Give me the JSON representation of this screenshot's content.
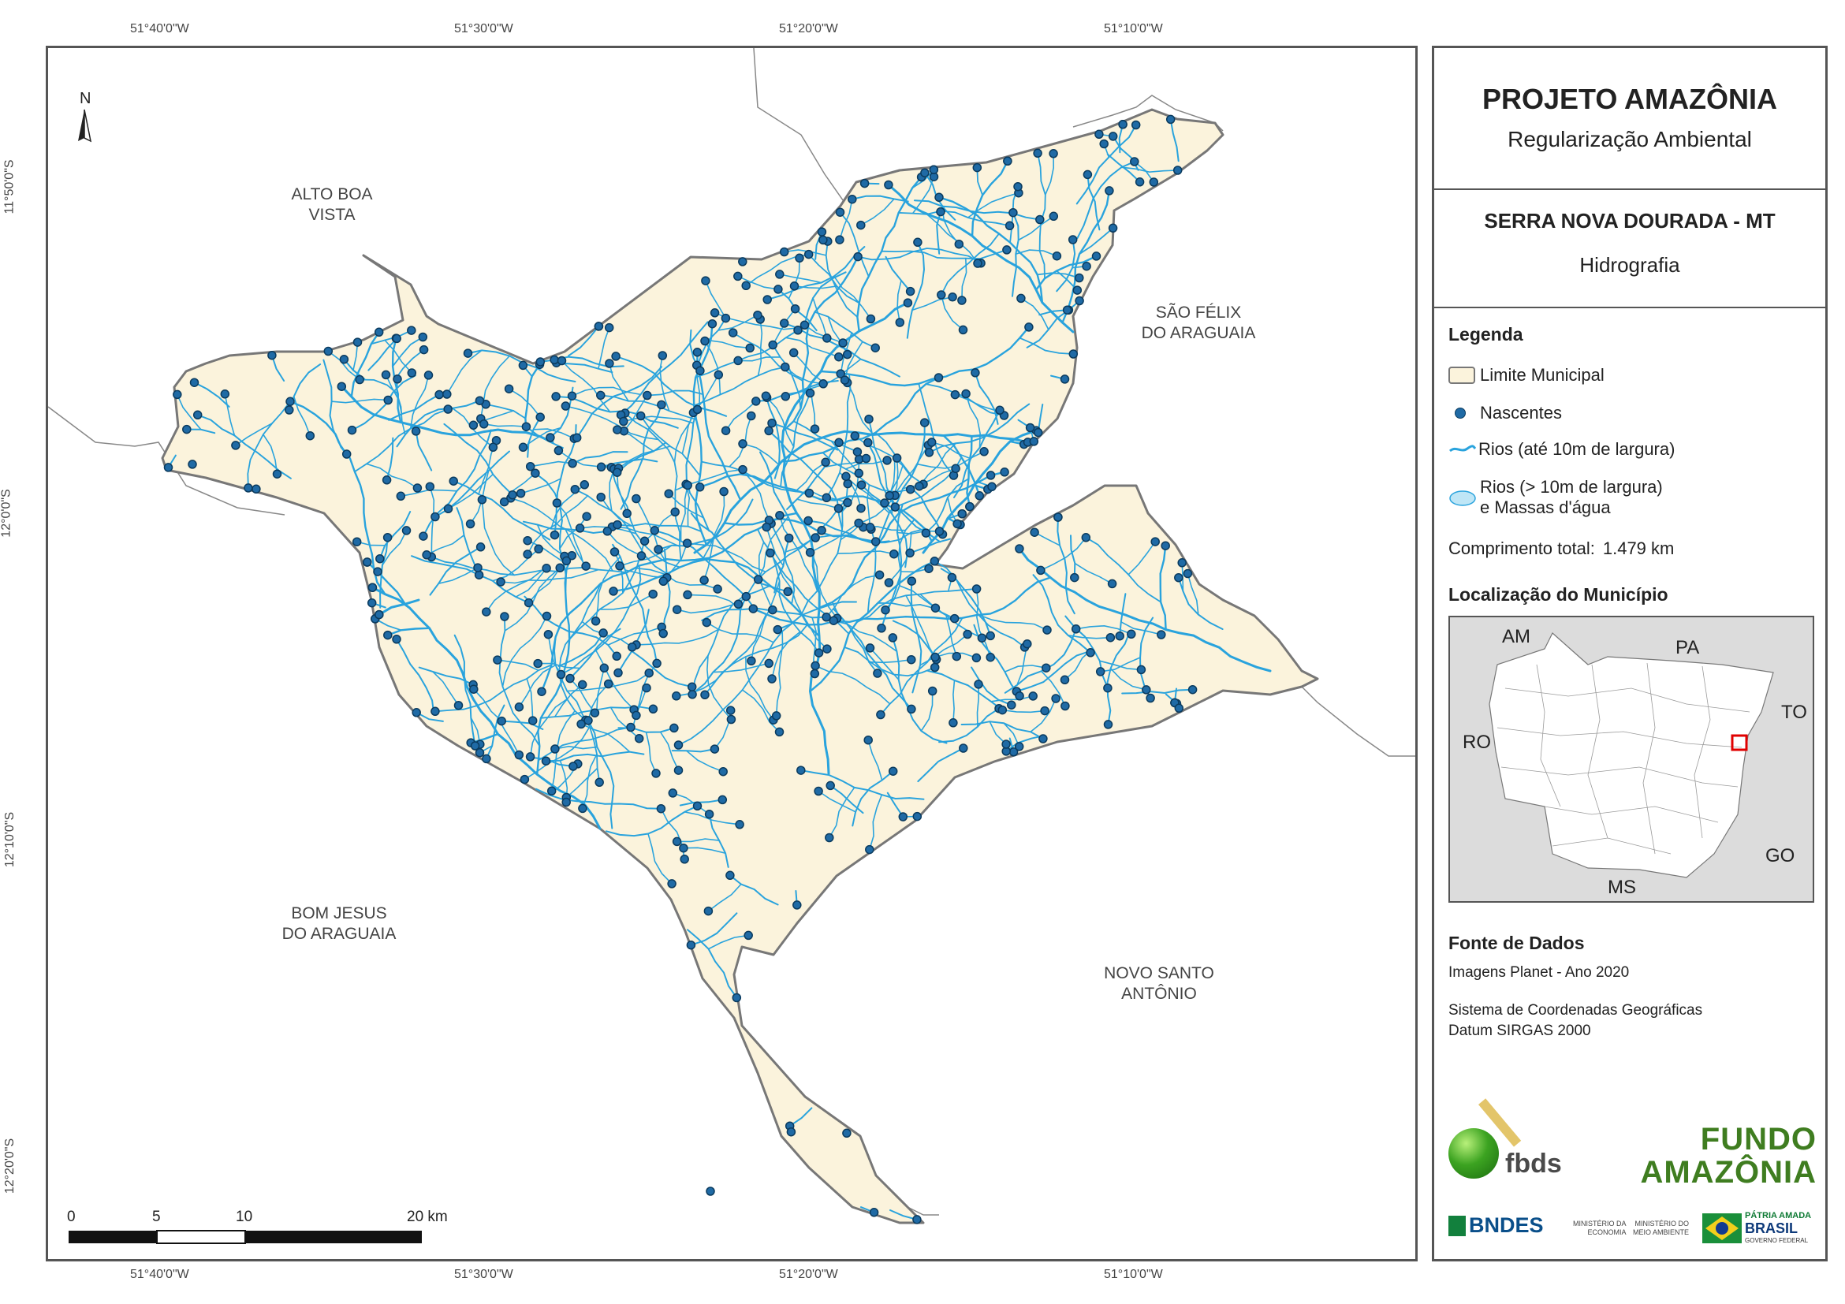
{
  "map": {
    "north_label": "N",
    "coords_top": [
      "51°40'0\"W",
      "51°30'0\"W",
      "51°20'0\"W",
      "51°10'0\"W"
    ],
    "coords_bottom": [
      "51°40'0\"W",
      "51°30'0\"W",
      "51°20'0\"W",
      "51°10'0\"W"
    ],
    "coords_left": [
      "11°50'0\"S",
      "12°0'0\"S",
      "12°10'0\"S",
      "12°20'0\"S"
    ],
    "municipalities": {
      "alto_boa_vista": [
        "ALTO BOA",
        "VISTA"
      ],
      "sao_felix": [
        "SÃO FÉLIX",
        "DO ARAGUAIA"
      ],
      "bom_jesus": [
        "BOM JESUS",
        "DO ARAGUAIA"
      ],
      "novo_santo": [
        "NOVO SANTO",
        "ANTÔNIO"
      ]
    },
    "scale_labels": [
      "0",
      "5",
      "10",
      "20 km"
    ],
    "colors": {
      "land": "#fbf3dc",
      "river": "#29a3dd",
      "spring": "#1f6aa5",
      "border": "#777777"
    }
  },
  "panel": {
    "title": "PROJETO AMAZÔNIA",
    "subtitle": "Regularização Ambiental",
    "municipality": "SERRA NOVA DOURADA - MT",
    "theme": "Hidrografia",
    "legend": {
      "heading": "Legenda",
      "items": [
        "Limite Municipal",
        "Nascentes",
        "Rios (até 10m de largura)",
        "Rios (> 10m de largura)",
        "e Massas d'água"
      ],
      "total_label": "Comprimento total:",
      "total_value": "1.479 km"
    },
    "location": {
      "heading": "Localização do Município",
      "states": [
        "AM",
        "PA",
        "TO",
        "RO",
        "GO",
        "MS"
      ]
    },
    "sources": {
      "heading": "Fonte de Dados",
      "line1": "Imagens Planet - Ano 2020",
      "line2": "Sistema de Coordenadas Geográficas",
      "line3": "Datum SIRGAS 2000"
    },
    "logos": {
      "fbds": "fbds",
      "fundo": "FUNDO",
      "amazonia": "AMAZÔNIA",
      "bndes": "BNDES",
      "min_economia": [
        "MINISTÉRIO DA",
        "ECONOMIA"
      ],
      "min_ambiente": [
        "MINISTÉRIO DO",
        "MEIO AMBIENTE"
      ],
      "patria": [
        "PÁTRIA AMADA",
        "BRASIL",
        "GOVERNO FEDERAL"
      ]
    }
  }
}
